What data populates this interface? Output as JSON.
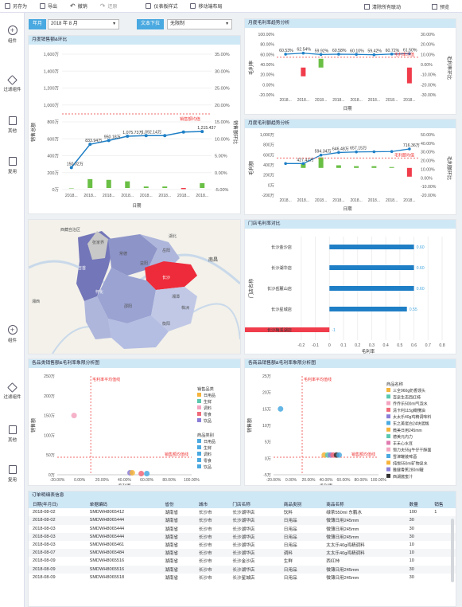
{
  "toolbar": {
    "items": [
      {
        "label": "另存为",
        "icon": "save-icon",
        "name": "save-as-button"
      },
      {
        "label": "导出",
        "icon": "export-icon",
        "name": "export-button"
      },
      {
        "label": "撤销",
        "icon": "undo-icon",
        "name": "undo-button"
      },
      {
        "label": "还原",
        "icon": "redo-icon",
        "name": "redo-button"
      },
      {
        "label": "仪表板样式",
        "icon": "dashboard-style-icon",
        "name": "dashboard-style-button"
      },
      {
        "label": "移动端布局",
        "icon": "mobile-layout-icon",
        "name": "mobile-layout-button"
      }
    ],
    "clear_linkage": "清除所有联动",
    "preview": "预览"
  },
  "sidebar": {
    "items": [
      {
        "label": "组件",
        "icon": "add-icon"
      },
      {
        "label": "过滤组件",
        "icon": "filter-component-icon"
      },
      {
        "label": "其他",
        "icon": "other-icon"
      },
      {
        "label": "复用",
        "icon": "reuse-icon"
      }
    ],
    "items2": [
      {
        "label": "组件",
        "icon": "add-icon"
      },
      {
        "label": "过滤组件",
        "icon": "filter-component-icon"
      },
      {
        "label": "其他",
        "icon": "other-icon"
      },
      {
        "label": "复用",
        "icon": "reuse-icon"
      }
    ]
  },
  "filters": {
    "year_month_label": "年月",
    "year_month_value": "2018 年 8 月",
    "text_dropdown_label": "文本下拉",
    "text_dropdown_value": "无限制"
  },
  "panels": {
    "sales_trend": {
      "title": "月度销售额&环比"
    },
    "gross_margin": {
      "title": "月度毛利率趋势分析"
    },
    "gross_profit": {
      "title": "月度毛利额趋势分析"
    },
    "map": {
      "title": ""
    },
    "store_margin": {
      "title": "门店毛利率对比"
    },
    "category_scatter": {
      "title": "各品类销售额&毛利率象限分析图"
    },
    "product_scatter": {
      "title": "各商品销售额&毛利率象限分析图"
    },
    "orders": {
      "title": "订单明细表信息"
    }
  },
  "chart_data": [
    {
      "type": "bar",
      "id": "sales_trend",
      "categories": [
        "2018...",
        "2018...",
        "2018...",
        "2018...",
        "2018...",
        "2018...",
        "2018...",
        "2018..."
      ],
      "series": [
        {
          "name": "销售额",
          "values": [
            0,
            1200000,
            1100000,
            900000,
            200000,
            200000,
            -150000,
            650000
          ]
        },
        {
          "name": "环比",
          "values": [
            1.5,
            8.37,
            9.5,
            10.76,
            10.93,
            10.93,
            12.0,
            12.15
          ]
        }
      ],
      "labels": [
        "150.02万",
        "833.94万",
        "950.18万",
        "1,075.73万",
        "1,092.14万",
        "",
        "",
        "1,215.437"
      ],
      "annotation": "销售额均值",
      "xlabel": "日期",
      "ylabel": "销售总额",
      "y2label": "销售额环比",
      "yticks": [
        "1,600万",
        "1,400万",
        "1,200万",
        "1,000万",
        "800万",
        "600万",
        "400万",
        "200万",
        "0万"
      ],
      "y2ticks": [
        "35.00%",
        "30.00%",
        "25.00%",
        "20.00%",
        "15.00%",
        "10.00%",
        "5.00%",
        "0.00%",
        "-5.00%"
      ],
      "ylim": [
        0,
        1600
      ]
    },
    {
      "type": "bar",
      "id": "gross_margin",
      "categories": [
        "2018...",
        "2018...",
        "2018...",
        "2018...",
        "2018...",
        "2018...",
        "2018...",
        "2018..."
      ],
      "labels": [
        "60.53%",
        "62.54%",
        "59.92%",
        "60.58%",
        "60.10%",
        "59.42%",
        "60.72%",
        "61.50%"
      ],
      "series": [
        {
          "name": "毛利率",
          "values": [
            60.53,
            62.54,
            59.92,
            60.58,
            60.1,
            59.42,
            60.72,
            61.5
          ]
        },
        {
          "name": "毛利率环比",
          "values": [
            0,
            -10,
            10,
            0,
            0,
            0,
            0,
            -18
          ]
        }
      ],
      "annotation": "毛利率均值",
      "xlabel": "日期",
      "ylabel": "毛利率",
      "y2label": "毛利率环比",
      "yticks": [
        "100.00%",
        "80.00%",
        "60.00%",
        "40.00%",
        "20.00%",
        "0.00%",
        "-20.00%"
      ],
      "y2ticks": [
        "30.00%",
        "20.00%",
        "10.00%",
        "0.00%",
        "-10.00%",
        "-20.00%",
        "-30.00%"
      ]
    },
    {
      "type": "bar",
      "id": "gross_profit",
      "categories": [
        "2018...",
        "2018...",
        "2018...",
        "2018...",
        "2018...",
        "2018...",
        "2018...",
        "2018..."
      ],
      "labels": [
        "",
        "427.42万",
        "594.34万",
        "646.48万",
        "657.15万",
        "",
        "",
        "716.36万"
      ],
      "series": [
        {
          "name": "毛利额",
          "values": [
            427,
            427,
            594,
            646,
            657,
            660,
            665,
            716
          ]
        },
        {
          "name": "毛利额环比",
          "values": [
            0,
            5,
            12,
            3,
            2,
            2,
            1,
            -10
          ]
        }
      ],
      "annotation": "毛利额均值",
      "xlabel": "日期",
      "ylabel": "毛利额",
      "y2label": "毛利额环比",
      "yticks": [
        "1,000万",
        "800万",
        "600万",
        "400万",
        "200万",
        "0万",
        "-200万"
      ],
      "y2ticks": [
        "50.00%",
        "40.00%",
        "30.00%",
        "20.00%",
        "10.00%",
        "0.00%",
        "-10.00%",
        "-20.00%"
      ]
    },
    {
      "type": "bar",
      "id": "store_margin",
      "categories": [
        "长沙金沙店",
        "长沙湖华店",
        "长沙岳麓山店",
        "长沙星城店",
        "长沙梅溪湖店"
      ],
      "values": [
        0.6,
        0.6,
        0.6,
        0.55,
        -1.0
      ],
      "labels": [
        "0.60",
        "0.60",
        "0.60",
        "0.55",
        "-1"
      ],
      "xlabel": "毛利率",
      "ylabel": "门店名称",
      "xticks": [
        "-0.2",
        "-0.1",
        "0",
        "0.1",
        "0.2",
        "0.3",
        "0.4",
        "0.5",
        "0.6",
        "0.7",
        "0.8"
      ]
    },
    {
      "type": "scatter",
      "id": "category_scatter",
      "xlabel": "毛利率",
      "ylabel": "销售额",
      "xticks": [
        "-20.00%",
        "0.00%",
        "20.00%",
        "40.00%",
        "60.00%",
        "80.00%",
        "100.00%"
      ],
      "yticks": [
        "250万",
        "200万",
        "150万",
        "100万",
        "50万",
        "0万"
      ],
      "vline_label": "毛利率平均值线",
      "hline_label": "销售额均值线",
      "legend1_title": "销售品类",
      "legend1": [
        {
          "name": "日用品",
          "color": "#f6b43a"
        },
        {
          "name": "生鲜",
          "color": "#5ac8b0"
        },
        {
          "name": "调料",
          "color": "#f3a4c0"
        },
        {
          "name": "零食",
          "color": "#f06a7a"
        },
        {
          "name": "饮品",
          "color": "#8a7ed8"
        }
      ],
      "legend2_title": "商品类别",
      "legend2": [
        {
          "name": "日用品",
          "color": "#4aa9e0"
        },
        {
          "name": "生鲜",
          "color": "#4aa9e0"
        },
        {
          "name": "调料",
          "color": "#4aa9e0"
        },
        {
          "name": "零食",
          "color": "#4aa9e0"
        },
        {
          "name": "饮品",
          "color": "#4aa9e0"
        }
      ],
      "points": [
        {
          "x": -5,
          "y": 150,
          "color": "#f3a4c0"
        },
        {
          "x": 45,
          "y": 5,
          "color": "#8a7ed8"
        },
        {
          "x": 47,
          "y": 5,
          "color": "#f6b43a"
        },
        {
          "x": 55,
          "y": 3,
          "color": "#f06a7a"
        },
        {
          "x": 60,
          "y": 3,
          "color": "#4aa9e0"
        }
      ]
    },
    {
      "type": "scatter",
      "id": "product_scatter",
      "xlabel": "毛利率",
      "ylabel": "销售额",
      "xticks": [
        "-20.00%",
        "0.00%",
        "20.00%",
        "40.00%",
        "60.00%",
        "80.00%",
        "100.00%"
      ],
      "yticks": [
        "25万",
        "20万",
        "15万",
        "10万",
        "5万",
        "0万",
        "-5万"
      ],
      "vline_label": "毛利率平均值线",
      "hline_label": "销售额均值线",
      "legend_title": "商品名称",
      "legend": [
        {
          "name": "三全960g奶香馒头",
          "color": "#f6b43a"
        },
        {
          "name": "百泉生态西红柿",
          "color": "#5ac8b0"
        },
        {
          "name": "乔乔乐500ml气泡水",
          "color": "#f3a4c0"
        },
        {
          "name": "清卡利115g橄欖油",
          "color": "#f06a7a"
        },
        {
          "name": "太太乐40g鸡精调味料",
          "color": "#8a7ed8"
        },
        {
          "name": "东之美蛋白24块蛋糕",
          "color": "#4aa9e0"
        },
        {
          "name": "微美日用245mm",
          "color": "#f6b43a"
        },
        {
          "name": "德美元内力",
          "color": "#5ac8b0"
        },
        {
          "name": "丰禾心水豆",
          "color": "#e07ab0"
        },
        {
          "name": "恒力夫55g牛仔干酥面",
          "color": "#f3a4c0"
        },
        {
          "name": "雪津罐装啤酒",
          "color": "#4aa9e0"
        },
        {
          "name": "纯悦550ml矿物泉水",
          "color": "#f6b43a"
        },
        {
          "name": "雅健香蕉280ml罐",
          "color": "#8a7ed8"
        },
        {
          "name": "西湖酱蜜汁",
          "color": "#333333"
        }
      ],
      "points": [
        {
          "x": -12,
          "y": 15,
          "color": "#4aa9e0"
        },
        {
          "x": 38,
          "y": 1,
          "color": "#f6b43a"
        },
        {
          "x": 42,
          "y": 1,
          "color": "#5ac8b0"
        },
        {
          "x": 45,
          "y": 1,
          "color": "#8a7ed8"
        },
        {
          "x": 48,
          "y": 1,
          "color": "#f06a7a"
        },
        {
          "x": 52,
          "y": 1,
          "color": "#333333"
        },
        {
          "x": 55,
          "y": 1,
          "color": "#4aa9e0"
        }
      ]
    }
  ],
  "map": {
    "labels": [
      "西藏自治区",
      "湖北",
      "长沙",
      "湘潭",
      "邵阳",
      "怀化",
      "株洲",
      "衡阳",
      "南昌",
      "益阳",
      "岳阳",
      "常德",
      "张家界",
      "吉首",
      "湘西"
    ]
  },
  "orders": {
    "headers": [
      "日期(年月日)",
      "单据编码",
      "省份",
      "城市",
      "门店名称",
      "商品类别",
      "商品名称",
      "数量",
      "销售"
    ],
    "rows": [
      [
        "2018-08-02",
        "SMDWH8065412",
        "湖南省",
        "长沙市",
        "长沙湖华店",
        "饮料",
        "绿茶550ml 东鹏水",
        "100",
        "1"
      ],
      [
        "2018-08-02",
        "SMDWH8065444",
        "湖南省",
        "长沙市",
        "长沙湖华店",
        "日用品",
        "微薄日用245mm",
        "30",
        ""
      ],
      [
        "2018-08-03",
        "SMDWH8065444",
        "湖南省",
        "长沙市",
        "长沙湖华店",
        "日用品",
        "微薄日用245mm",
        "30",
        ""
      ],
      [
        "2018-08-03",
        "SMDWH8065444",
        "湖南省",
        "长沙市",
        "长沙湖华店",
        "日用品",
        "微薄日用245mm",
        "30",
        ""
      ],
      [
        "2018-08-03",
        "SMDWH8065461",
        "湖南省",
        "长沙市",
        "长沙湖华店",
        "日用品",
        "太太乐40g鸡精调料",
        "10",
        ""
      ],
      [
        "2018-08-07",
        "SMDWH8065484",
        "湖南省",
        "长沙市",
        "长沙湖华店",
        "调料",
        "太太乐40g鸡精调料",
        "10",
        ""
      ],
      [
        "2018-08-09",
        "SMDWH8065516",
        "湖南省",
        "长沙市",
        "长沙金沙店",
        "生鲜",
        "西红柿",
        "10",
        ""
      ],
      [
        "2018-08-09",
        "SMDWH8065516",
        "湖南省",
        "长沙市",
        "长沙湖华店",
        "日用品",
        "微薄日用245mm",
        "30",
        ""
      ],
      [
        "2018-08-09",
        "SMDWH8065518",
        "湖南省",
        "长沙市",
        "长沙星城店",
        "日用品",
        "微薄日用245mm",
        "30",
        ""
      ]
    ]
  },
  "colors": {
    "accent": "#4aa9e0",
    "bar_green": "#6abf45",
    "bar_red": "#f03c4b",
    "line_blue": "#1f7fc6",
    "header_bg": "#cfe8f6"
  }
}
